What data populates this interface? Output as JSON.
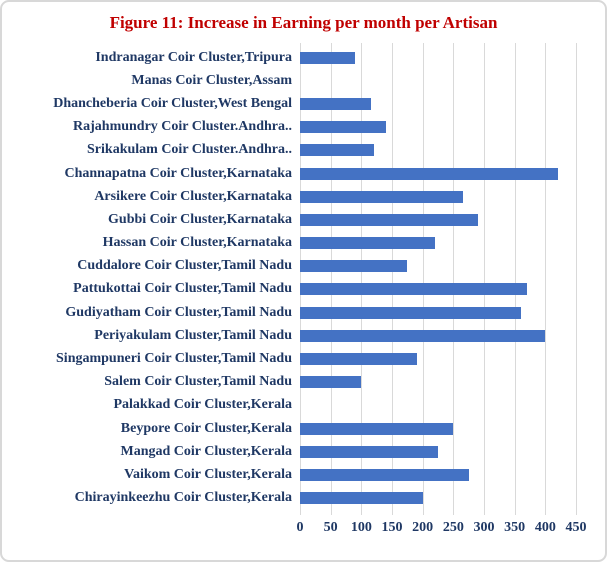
{
  "title": "Figure 11: Increase in Earning per month per Artisan",
  "colors": {
    "title": "#C00000",
    "bar": "#4472C4",
    "axis_text": "#1F3864",
    "gridline": "#D9D9D9",
    "border": "#D8D8D8"
  },
  "chart_data": {
    "type": "bar",
    "orientation": "horizontal",
    "title": "Figure 11: Increase in Earning per month per Artisan",
    "categories": [
      "Indranagar Coir Cluster,Tripura",
      "Manas Coir Cluster,Assam",
      "Dhancheberia Coir Cluster,West Bengal",
      "Rajahmundry Coir Cluster.Andhra..",
      "Srikakulam Coir Cluster.Andhra..",
      "Channapatna Coir Cluster,Karnataka",
      "Arsikere Coir Cluster,Karnataka",
      "Gubbi Coir Cluster,Karnataka",
      "Hassan Coir Cluster,Karnataka",
      "Cuddalore Coir Cluster,Tamil Nadu",
      "Pattukottai Coir Cluster,Tamil Nadu",
      "Gudiyatham Coir Cluster,Tamil Nadu",
      "Periyakulam Cluster,Tamil Nadu",
      "Singampuneri Coir Cluster,Tamil Nadu",
      "Salem Coir Cluster,Tamil Nadu",
      "Palakkad Coir Cluster,Kerala",
      "Beypore Coir Cluster,Kerala",
      "Mangad Coir Cluster,Kerala",
      "Vaikom Coir Cluster,Kerala",
      "Chirayinkeezhu Coir Cluster,Kerala"
    ],
    "values": [
      90,
      0,
      115,
      140,
      120,
      420,
      265,
      290,
      220,
      175,
      370,
      360,
      400,
      190,
      100,
      0,
      250,
      225,
      275,
      200
    ],
    "xlabel": "",
    "ylabel": "",
    "xlim": [
      0,
      450
    ],
    "xticks": [
      0,
      50,
      100,
      150,
      200,
      250,
      300,
      350,
      400,
      450
    ],
    "grid": true,
    "legend": false
  }
}
